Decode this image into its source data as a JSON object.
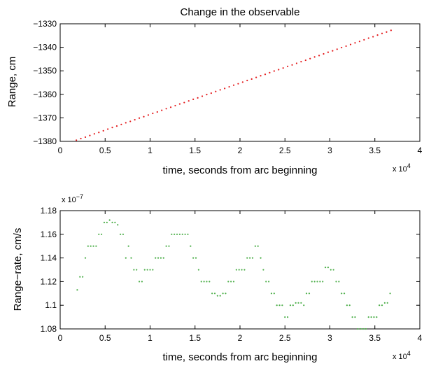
{
  "chart_data": [
    {
      "type": "scatter",
      "title": "Change in the observable",
      "xlabel": "time, seconds from arc beginning",
      "ylabel": "Range, cm",
      "x_exponent_label": "x 10",
      "x_exponent_power": "4",
      "xlim": [
        0,
        40000
      ],
      "ylim": [
        -1380,
        -1330
      ],
      "xticks": [
        0,
        5000,
        10000,
        15000,
        20000,
        25000,
        30000,
        35000,
        40000
      ],
      "xtick_labels": [
        "0",
        "0.5",
        "1",
        "1.5",
        "2",
        "2.5",
        "3",
        "3.5",
        "4"
      ],
      "yticks": [
        -1380,
        -1370,
        -1360,
        -1350,
        -1340,
        -1330
      ],
      "ytick_labels": [
        "−1380",
        "−1370",
        "−1360",
        "−1350",
        "−1340",
        "−1330"
      ],
      "color": "#e41a1c",
      "series": [
        {
          "x": [
            1800,
            2300,
            2800,
            3300,
            3800,
            4300,
            4800,
            5300,
            5800,
            6300,
            6800,
            7300,
            7800,
            8300,
            8800,
            9300,
            9800,
            10300,
            10800,
            11300,
            11800,
            12300,
            12800,
            13300,
            13800,
            14300,
            14800,
            15300,
            15800,
            16300,
            16800,
            17300,
            17800,
            18300,
            18800,
            19300,
            19800,
            20300,
            20800,
            21300,
            21800,
            22300,
            22800,
            23300,
            23800,
            24300,
            24800,
            25300,
            25800,
            26300,
            26800,
            27300,
            27800,
            28300,
            28800,
            29300,
            29800,
            30300,
            30800,
            31300,
            31800,
            32300,
            32800,
            33300,
            33800,
            34300,
            34800,
            35300,
            35800,
            36300,
            36800
          ],
          "y": [
            -1379.5,
            -1378.8,
            -1378.2,
            -1377.5,
            -1376.8,
            -1376.2,
            -1375.5,
            -1374.8,
            -1374.1,
            -1373.5,
            -1372.8,
            -1372.1,
            -1371.5,
            -1370.8,
            -1370.1,
            -1369.5,
            -1368.8,
            -1368.1,
            -1367.5,
            -1366.8,
            -1366.1,
            -1365.5,
            -1364.8,
            -1364.1,
            -1363.5,
            -1362.8,
            -1362.1,
            -1361.5,
            -1360.8,
            -1360.1,
            -1359.5,
            -1358.8,
            -1358.1,
            -1357.5,
            -1356.8,
            -1356.1,
            -1355.5,
            -1354.8,
            -1354.1,
            -1353.5,
            -1352.8,
            -1352.1,
            -1351.5,
            -1350.8,
            -1350.1,
            -1349.5,
            -1348.8,
            -1348.1,
            -1347.5,
            -1346.8,
            -1346.1,
            -1345.5,
            -1344.8,
            -1344.1,
            -1343.5,
            -1342.8,
            -1342.1,
            -1341.5,
            -1340.8,
            -1340.1,
            -1339.5,
            -1338.8,
            -1338.1,
            -1337.5,
            -1336.8,
            -1336.1,
            -1335.5,
            -1334.8,
            -1334.1,
            -1333.5,
            -1332.8
          ]
        }
      ]
    },
    {
      "type": "scatter",
      "title": "",
      "xlabel": "time, seconds from arc beginning",
      "ylabel": "Range−rate, cm/s",
      "x_exponent_label": "x 10",
      "x_exponent_power": "4",
      "y_exponent_label": "x 10",
      "y_exponent_power": "−7",
      "xlim": [
        0,
        40000
      ],
      "ylim": [
        1.08,
        1.18
      ],
      "xticks": [
        0,
        5000,
        10000,
        15000,
        20000,
        25000,
        30000,
        35000,
        40000
      ],
      "xtick_labels": [
        "0",
        "0.5",
        "1",
        "1.5",
        "2",
        "2.5",
        "3",
        "3.5",
        "4"
      ],
      "yticks": [
        1.08,
        1.1,
        1.12,
        1.14,
        1.16,
        1.18
      ],
      "ytick_labels": [
        "1.08",
        "1.1",
        "1.12",
        "1.14",
        "1.16",
        "1.18"
      ],
      "color": "#4daf4a",
      "series": [
        {
          "x": [
            1900,
            2200,
            2500,
            2800,
            3100,
            3400,
            3700,
            4000,
            4300,
            4600,
            4900,
            5200,
            5500,
            5800,
            6100,
            6400,
            6700,
            7000,
            7300,
            7600,
            7900,
            8200,
            8500,
            8800,
            9100,
            9400,
            9700,
            10000,
            10300,
            10600,
            10900,
            11200,
            11500,
            11800,
            12100,
            12400,
            12700,
            13000,
            13300,
            13600,
            13900,
            14200,
            14500,
            14800,
            15100,
            15400,
            15700,
            16000,
            16300,
            16600,
            16900,
            17200,
            17500,
            17800,
            18100,
            18400,
            18700,
            19000,
            19300,
            19600,
            19900,
            20200,
            20500,
            20800,
            21100,
            21400,
            21700,
            22000,
            22300,
            22600,
            22900,
            23200,
            23500,
            23800,
            24100,
            24400,
            24700,
            25000,
            25300,
            25600,
            25900,
            26200,
            26500,
            26800,
            27100,
            27400,
            27700,
            28000,
            28300,
            28600,
            28900,
            29200,
            29500,
            29800,
            30100,
            30400,
            30700,
            31000,
            31300,
            31600,
            31900,
            32200,
            32500,
            32800,
            33100,
            33400,
            33700,
            34000,
            34300,
            34600,
            34900,
            35200,
            35500,
            35800,
            36100,
            36400,
            36700
          ],
          "y": [
            1.113,
            1.124,
            1.124,
            1.14,
            1.15,
            1.15,
            1.15,
            1.15,
            1.16,
            1.16,
            1.17,
            1.17,
            1.172,
            1.17,
            1.17,
            1.168,
            1.16,
            1.16,
            1.14,
            1.15,
            1.14,
            1.13,
            1.13,
            1.12,
            1.12,
            1.13,
            1.13,
            1.13,
            1.13,
            1.14,
            1.14,
            1.14,
            1.14,
            1.15,
            1.15,
            1.16,
            1.16,
            1.16,
            1.16,
            1.16,
            1.16,
            1.16,
            1.15,
            1.14,
            1.14,
            1.13,
            1.12,
            1.12,
            1.12,
            1.12,
            1.11,
            1.11,
            1.108,
            1.108,
            1.11,
            1.11,
            1.12,
            1.12,
            1.12,
            1.13,
            1.13,
            1.13,
            1.13,
            1.14,
            1.14,
            1.14,
            1.15,
            1.15,
            1.14,
            1.13,
            1.12,
            1.12,
            1.11,
            1.11,
            1.1,
            1.1,
            1.1,
            1.09,
            1.09,
            1.1,
            1.1,
            1.102,
            1.102,
            1.102,
            1.1,
            1.11,
            1.11,
            1.12,
            1.12,
            1.12,
            1.12,
            1.12,
            1.132,
            1.132,
            1.13,
            1.13,
            1.12,
            1.12,
            1.11,
            1.11,
            1.1,
            1.1,
            1.09,
            1.09,
            1.08,
            1.08,
            1.08,
            1.08,
            1.09,
            1.09,
            1.09,
            1.09,
            1.1,
            1.1,
            1.102,
            1.102,
            1.11
          ]
        }
      ]
    }
  ]
}
